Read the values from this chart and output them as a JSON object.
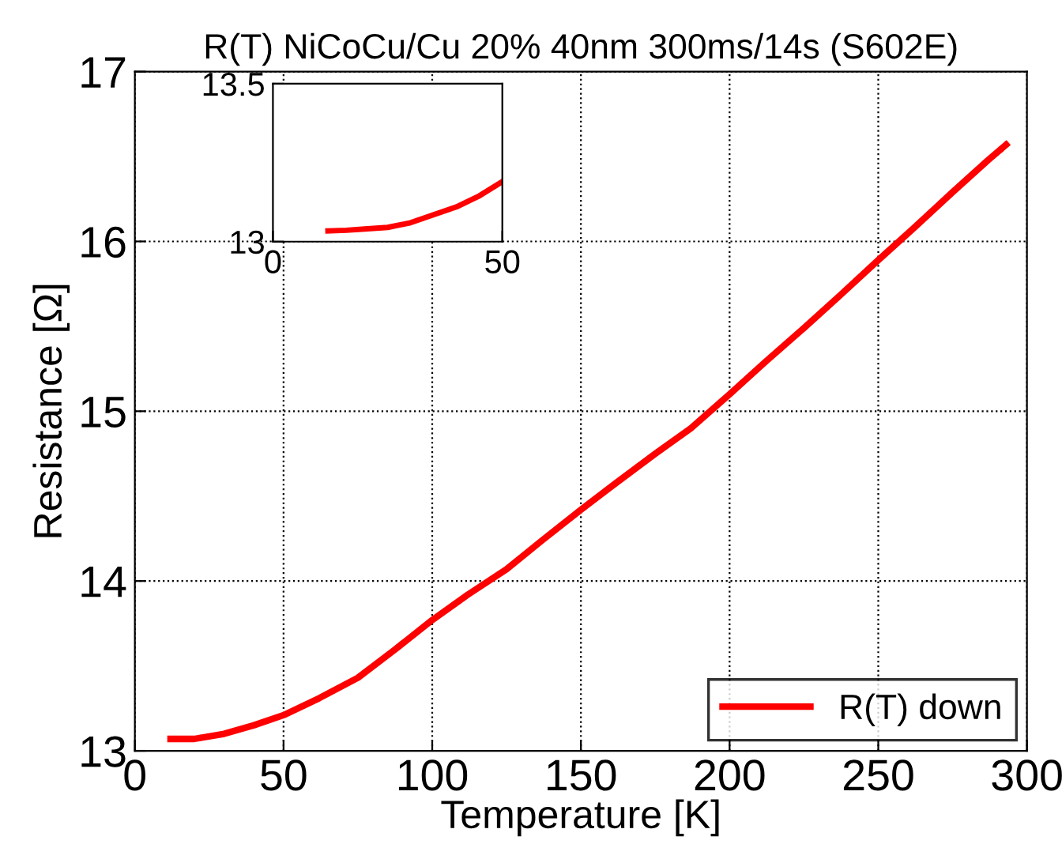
{
  "chart_data": [
    {
      "type": "line",
      "title": "R(T) NiCoCu/Cu 20% 40nm 300ms/14s (S602E)",
      "xlabel": "Temperature [K]",
      "ylabel": "Resistance [Ω]",
      "xlim": [
        0,
        300
      ],
      "ylim": [
        13,
        17
      ],
      "xticks": [
        0,
        50,
        100,
        150,
        200,
        250,
        300
      ],
      "yticks": [
        13,
        14,
        15,
        16,
        17
      ],
      "grid": true,
      "legend": "bottom right",
      "series": [
        {
          "name": "R(T) down",
          "color": "#ff0000",
          "x": [
            12,
            20,
            30,
            40,
            50,
            62,
            75,
            87,
            100,
            112,
            125,
            137,
            150,
            162,
            175,
            187,
            200,
            212,
            225,
            237,
            250,
            262,
            275,
            287,
            293
          ],
          "values": [
            13.07,
            13.07,
            13.1,
            13.15,
            13.21,
            13.31,
            13.43,
            13.59,
            13.77,
            13.92,
            14.07,
            14.24,
            14.42,
            14.58,
            14.75,
            14.9,
            15.1,
            15.29,
            15.49,
            15.68,
            15.89,
            16.08,
            16.29,
            16.48,
            16.57
          ]
        }
      ]
    },
    {
      "type": "line",
      "xlim": [
        0,
        50
      ],
      "ylim": [
        13,
        13.5
      ],
      "xticks": [
        0,
        50
      ],
      "yticks": [
        13,
        13.5
      ],
      "grid": false,
      "series": [
        {
          "color": "#ff0000",
          "x": [
            12,
            16,
            20,
            25,
            30,
            35,
            40,
            45,
            50
          ],
          "values": [
            13.034,
            13.036,
            13.04,
            13.045,
            13.06,
            13.085,
            13.11,
            13.145,
            13.19
          ]
        }
      ]
    }
  ]
}
